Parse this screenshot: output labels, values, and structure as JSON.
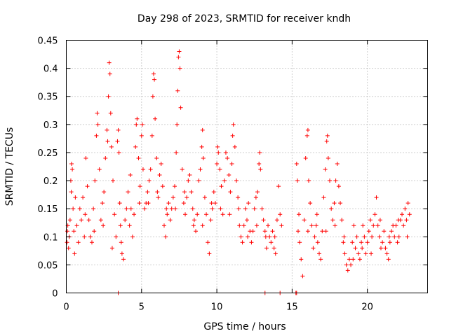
{
  "chart_data": {
    "type": "scatter",
    "title": "Day 298 of 2023, SRMTID for receiver kndh",
    "xlabel": "GPS time / hours",
    "ylabel": "SRMTID / TECUs",
    "xlim": [
      0,
      24
    ],
    "ylim": [
      0,
      0.45
    ],
    "xticks": [
      0,
      5,
      10,
      15,
      20
    ],
    "yticks": [
      0,
      0.05,
      0.1,
      0.15,
      0.2,
      0.25,
      0.3,
      0.35,
      0.4,
      0.45
    ],
    "xtick_labels": [
      "0",
      "5",
      "10",
      "15",
      "20"
    ],
    "ytick_labels": [
      "0",
      "0.05",
      "0.1",
      "0.15",
      "0.2",
      "0.25",
      "0.3",
      "0.35",
      "0.4",
      "0.45"
    ],
    "grid": true,
    "marker": "+",
    "color": "#ff0000",
    "series": [
      {
        "name": "SRMTID",
        "points": [
          [
            0.05,
            0.09
          ],
          [
            0.1,
            0.12
          ],
          [
            0.15,
            0.08
          ],
          [
            0.2,
            0.1
          ],
          [
            0.25,
            0.13
          ],
          [
            0.3,
            0.2
          ],
          [
            0.35,
            0.23
          ],
          [
            0.4,
            0.22
          ],
          [
            0.45,
            0.15
          ],
          [
            0.5,
            0.11
          ],
          [
            0.6,
            0.17
          ],
          [
            0.7,
            0.12
          ],
          [
            0.8,
            0.09
          ],
          [
            0.9,
            0.15
          ],
          [
            1.0,
            0.13
          ],
          [
            1.1,
            0.17
          ],
          [
            1.2,
            0.1
          ],
          [
            1.3,
            0.24
          ],
          [
            1.4,
            0.19
          ],
          [
            1.5,
            0.13
          ],
          [
            1.6,
            0.1
          ],
          [
            1.7,
            0.09
          ],
          [
            1.8,
            0.15
          ],
          [
            1.9,
            0.2
          ],
          [
            2.0,
            0.28
          ],
          [
            2.05,
            0.32
          ],
          [
            2.1,
            0.3
          ],
          [
            2.2,
            0.22
          ],
          [
            2.3,
            0.13
          ],
          [
            2.4,
            0.16
          ],
          [
            2.5,
            0.18
          ],
          [
            2.6,
            0.24
          ],
          [
            2.7,
            0.29
          ],
          [
            2.75,
            0.27
          ],
          [
            2.8,
            0.35
          ],
          [
            2.85,
            0.41
          ],
          [
            2.9,
            0.39
          ],
          [
            2.95,
            0.32
          ],
          [
            3.0,
            0.26
          ],
          [
            3.1,
            0.2
          ],
          [
            3.2,
            0.14
          ],
          [
            3.3,
            0.1
          ],
          [
            3.4,
            0.27
          ],
          [
            3.45,
            0.29
          ],
          [
            3.5,
            0.25
          ],
          [
            3.55,
            0.16
          ],
          [
            3.6,
            0.12
          ],
          [
            3.7,
            0.07
          ],
          [
            3.8,
            0.06
          ],
          [
            3.9,
            0.13
          ],
          [
            4.0,
            0.15
          ],
          [
            4.1,
            0.18
          ],
          [
            4.2,
            0.12
          ],
          [
            4.3,
            0.15
          ],
          [
            4.4,
            0.1
          ],
          [
            4.5,
            0.14
          ],
          [
            4.6,
            0.26
          ],
          [
            4.65,
            0.3
          ],
          [
            4.7,
            0.31
          ],
          [
            4.8,
            0.24
          ],
          [
            4.9,
            0.19
          ],
          [
            5.0,
            0.28
          ],
          [
            5.05,
            0.3
          ],
          [
            5.1,
            0.22
          ],
          [
            5.2,
            0.15
          ],
          [
            5.3,
            0.16
          ],
          [
            5.4,
            0.18
          ],
          [
            5.5,
            0.2
          ],
          [
            5.6,
            0.22
          ],
          [
            5.7,
            0.28
          ],
          [
            5.75,
            0.35
          ],
          [
            5.8,
            0.39
          ],
          [
            5.85,
            0.38
          ],
          [
            5.9,
            0.31
          ],
          [
            6.0,
            0.24
          ],
          [
            6.1,
            0.17
          ],
          [
            6.2,
            0.21
          ],
          [
            6.3,
            0.23
          ],
          [
            6.4,
            0.19
          ],
          [
            6.5,
            0.12
          ],
          [
            6.6,
            0.1
          ],
          [
            6.7,
            0.14
          ],
          [
            6.8,
            0.16
          ],
          [
            6.9,
            0.13
          ],
          [
            7.0,
            0.15
          ],
          [
            7.1,
            0.17
          ],
          [
            7.2,
            0.19
          ],
          [
            7.3,
            0.25
          ],
          [
            7.35,
            0.3
          ],
          [
            7.4,
            0.36
          ],
          [
            7.45,
            0.42
          ],
          [
            7.5,
            0.43
          ],
          [
            7.55,
            0.4
          ],
          [
            7.6,
            0.33
          ],
          [
            7.7,
            0.22
          ],
          [
            7.8,
            0.16
          ],
          [
            7.9,
            0.14
          ],
          [
            8.0,
            0.17
          ],
          [
            8.1,
            0.2
          ],
          [
            8.2,
            0.21
          ],
          [
            8.3,
            0.18
          ],
          [
            8.4,
            0.15
          ],
          [
            8.5,
            0.13
          ],
          [
            8.6,
            0.11
          ],
          [
            8.7,
            0.14
          ],
          [
            8.8,
            0.2
          ],
          [
            8.9,
            0.22
          ],
          [
            9.0,
            0.26
          ],
          [
            9.05,
            0.29
          ],
          [
            9.1,
            0.24
          ],
          [
            9.2,
            0.17
          ],
          [
            9.3,
            0.14
          ],
          [
            9.4,
            0.09
          ],
          [
            9.5,
            0.07
          ],
          [
            9.6,
            0.13
          ],
          [
            9.7,
            0.15
          ],
          [
            9.8,
            0.18
          ],
          [
            9.9,
            0.16
          ],
          [
            10.0,
            0.23
          ],
          [
            10.05,
            0.26
          ],
          [
            10.1,
            0.25
          ],
          [
            10.2,
            0.22
          ],
          [
            10.3,
            0.19
          ],
          [
            10.4,
            0.14
          ],
          [
            10.5,
            0.2
          ],
          [
            10.6,
            0.25
          ],
          [
            10.7,
            0.24
          ],
          [
            10.8,
            0.21
          ],
          [
            10.9,
            0.18
          ],
          [
            11.0,
            0.23
          ],
          [
            11.05,
            0.28
          ],
          [
            11.1,
            0.3
          ],
          [
            11.2,
            0.26
          ],
          [
            11.3,
            0.2
          ],
          [
            11.4,
            0.17
          ],
          [
            11.5,
            0.12
          ],
          [
            11.6,
            0.1
          ],
          [
            11.7,
            0.09
          ],
          [
            11.8,
            0.12
          ],
          [
            11.9,
            0.15
          ],
          [
            12.0,
            0.13
          ],
          [
            12.1,
            0.16
          ],
          [
            12.2,
            0.11
          ],
          [
            12.3,
            0.09
          ],
          [
            12.4,
            0.11
          ],
          [
            12.5,
            0.15
          ],
          [
            12.6,
            0.17
          ],
          [
            12.7,
            0.18
          ],
          [
            12.8,
            0.23
          ],
          [
            12.85,
            0.25
          ],
          [
            12.9,
            0.22
          ],
          [
            13.0,
            0.15
          ],
          [
            13.1,
            0.13
          ],
          [
            13.2,
            0.11
          ],
          [
            13.3,
            0.08
          ],
          [
            13.4,
            0.12
          ],
          [
            13.5,
            0.1
          ],
          [
            13.6,
            0.09
          ],
          [
            13.7,
            0.11
          ],
          [
            13.8,
            0.08
          ],
          [
            13.9,
            0.07
          ],
          [
            14.0,
            0.13
          ],
          [
            14.1,
            0.19
          ],
          [
            14.2,
            0.14
          ],
          [
            14.3,
            0.12
          ],
          [
            15.3,
            0.23
          ],
          [
            15.35,
            0.2
          ],
          [
            15.4,
            0.11
          ],
          [
            15.5,
            0.09
          ],
          [
            15.6,
            0.06
          ],
          [
            15.7,
            0.03
          ],
          [
            15.8,
            0.13
          ],
          [
            15.9,
            0.24
          ],
          [
            16.0,
            0.28
          ],
          [
            16.05,
            0.29
          ],
          [
            16.1,
            0.2
          ],
          [
            16.2,
            0.16
          ],
          [
            16.3,
            0.12
          ],
          [
            16.4,
            0.08
          ],
          [
            16.5,
            0.1
          ],
          [
            16.6,
            0.12
          ],
          [
            16.7,
            0.09
          ],
          [
            16.8,
            0.07
          ],
          [
            16.9,
            0.06
          ],
          [
            17.0,
            0.11
          ],
          [
            17.1,
            0.17
          ],
          [
            17.2,
            0.22
          ],
          [
            17.3,
            0.27
          ],
          [
            17.35,
            0.28
          ],
          [
            17.4,
            0.24
          ],
          [
            17.5,
            0.2
          ],
          [
            17.6,
            0.15
          ],
          [
            17.7,
            0.13
          ],
          [
            17.8,
            0.16
          ],
          [
            17.9,
            0.2
          ],
          [
            18.0,
            0.23
          ],
          [
            18.1,
            0.19
          ],
          [
            18.2,
            0.16
          ],
          [
            18.3,
            0.13
          ],
          [
            18.4,
            0.09
          ],
          [
            18.5,
            0.07
          ],
          [
            18.6,
            0.05
          ],
          [
            18.7,
            0.04
          ],
          [
            18.8,
            0.06
          ],
          [
            18.9,
            0.05
          ],
          [
            19.0,
            0.09
          ],
          [
            19.1,
            0.12
          ],
          [
            19.2,
            0.08
          ],
          [
            19.3,
            0.1
          ],
          [
            19.4,
            0.07
          ],
          [
            19.5,
            0.06
          ],
          [
            19.6,
            0.09
          ],
          [
            19.7,
            0.12
          ],
          [
            19.8,
            0.1
          ],
          [
            19.9,
            0.07
          ],
          [
            20.0,
            0.09
          ],
          [
            20.1,
            0.11
          ],
          [
            20.2,
            0.13
          ],
          [
            20.3,
            0.1
          ],
          [
            20.4,
            0.12
          ],
          [
            20.5,
            0.14
          ],
          [
            20.6,
            0.17
          ],
          [
            20.7,
            0.12
          ],
          [
            20.8,
            0.1
          ],
          [
            20.9,
            0.08
          ],
          [
            21.0,
            0.09
          ],
          [
            21.1,
            0.11
          ],
          [
            21.2,
            0.08
          ],
          [
            21.3,
            0.07
          ],
          [
            21.4,
            0.06
          ],
          [
            21.5,
            0.09
          ],
          [
            21.6,
            0.11
          ],
          [
            21.7,
            0.12
          ],
          [
            21.8,
            0.1
          ],
          [
            21.9,
            0.12
          ],
          [
            22.0,
            0.09
          ],
          [
            22.1,
            0.1
          ],
          [
            22.2,
            0.13
          ],
          [
            22.3,
            0.14
          ],
          [
            22.4,
            0.12
          ],
          [
            22.5,
            0.15
          ],
          [
            22.6,
            0.13
          ],
          [
            22.7,
            0.16
          ],
          [
            22.8,
            0.14
          ],
          [
            0.07,
            0.11
          ],
          [
            0.33,
            0.18
          ],
          [
            0.55,
            0.07
          ],
          [
            1.25,
            0.14
          ],
          [
            1.85,
            0.11
          ],
          [
            2.45,
            0.12
          ],
          [
            3.05,
            0.08
          ],
          [
            3.65,
            0.09
          ],
          [
            4.25,
            0.21
          ],
          [
            4.85,
            0.16
          ],
          [
            5.45,
            0.16
          ],
          [
            6.05,
            0.18
          ],
          [
            6.65,
            0.15
          ],
          [
            7.25,
            0.15
          ],
          [
            7.85,
            0.18
          ],
          [
            8.45,
            0.12
          ],
          [
            9.05,
            0.12
          ],
          [
            9.65,
            0.16
          ],
          [
            10.25,
            0.15
          ],
          [
            10.85,
            0.14
          ],
          [
            11.45,
            0.15
          ],
          [
            12.05,
            0.1
          ],
          [
            12.65,
            0.12
          ],
          [
            13.25,
            0.1
          ],
          [
            13.85,
            0.1
          ],
          [
            15.45,
            0.14
          ],
          [
            16.05,
            0.11
          ],
          [
            16.65,
            0.14
          ],
          [
            17.25,
            0.11
          ],
          [
            17.85,
            0.12
          ],
          [
            18.45,
            0.1
          ],
          [
            19.05,
            0.06
          ],
          [
            19.65,
            0.08
          ],
          [
            20.25,
            0.07
          ],
          [
            20.85,
            0.13
          ],
          [
            21.45,
            0.1
          ],
          [
            22.05,
            0.13
          ],
          [
            22.65,
            0.1
          ],
          [
            3.45,
            0.0
          ],
          [
            13.2,
            0.0
          ],
          [
            14.2,
            0.0
          ],
          [
            15.25,
            0.0
          ],
          [
            15.3,
            0.0
          ]
        ]
      }
    ]
  }
}
